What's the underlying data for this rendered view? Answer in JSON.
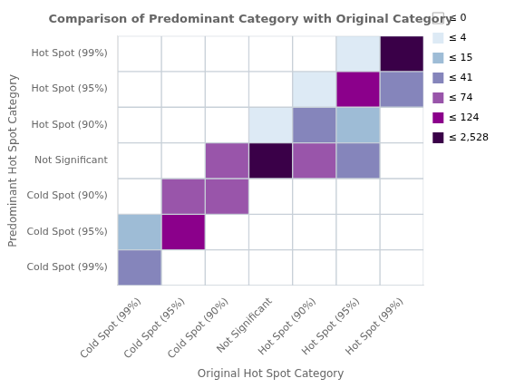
{
  "chart_data": {
    "type": "heatmap",
    "title": "Comparison of Predominant Category with Original Category",
    "xlabel": "Original Hot Spot Category",
    "ylabel": "Predominant Hot Spot Category",
    "categories": [
      "Cold Spot (99%)",
      "Cold Spot (95%)",
      "Cold Spot (90%)",
      "Not Significant",
      "Hot Spot (90%)",
      "Hot Spot (95%)",
      "Hot Spot (99%)"
    ],
    "values": [
      [
        0,
        0,
        0,
        0,
        0,
        4,
        2528
      ],
      [
        0,
        0,
        0,
        0,
        4,
        124,
        41
      ],
      [
        0,
        0,
        0,
        4,
        41,
        15,
        0
      ],
      [
        0,
        0,
        74,
        2528,
        74,
        41,
        0
      ],
      [
        0,
        74,
        74,
        0,
        0,
        0,
        0
      ],
      [
        15,
        124,
        0,
        0,
        0,
        0,
        0
      ],
      [
        41,
        0,
        0,
        0,
        0,
        0,
        0
      ]
    ],
    "color_scale": {
      "thresholds": [
        0,
        4,
        15,
        41,
        74,
        124,
        2528
      ],
      "labels": [
        "≤ 0",
        "≤ 4",
        "≤ 15",
        "≤ 41",
        "≤ 74",
        "≤ 124",
        "≤ 2,528"
      ],
      "colors": [
        "#ffffff",
        "#ddeaf5",
        "#9ebcd6",
        "#8585bb",
        "#9955aa",
        "#8b008b",
        "#3a0048"
      ]
    },
    "legend": "right",
    "grid": false
  }
}
